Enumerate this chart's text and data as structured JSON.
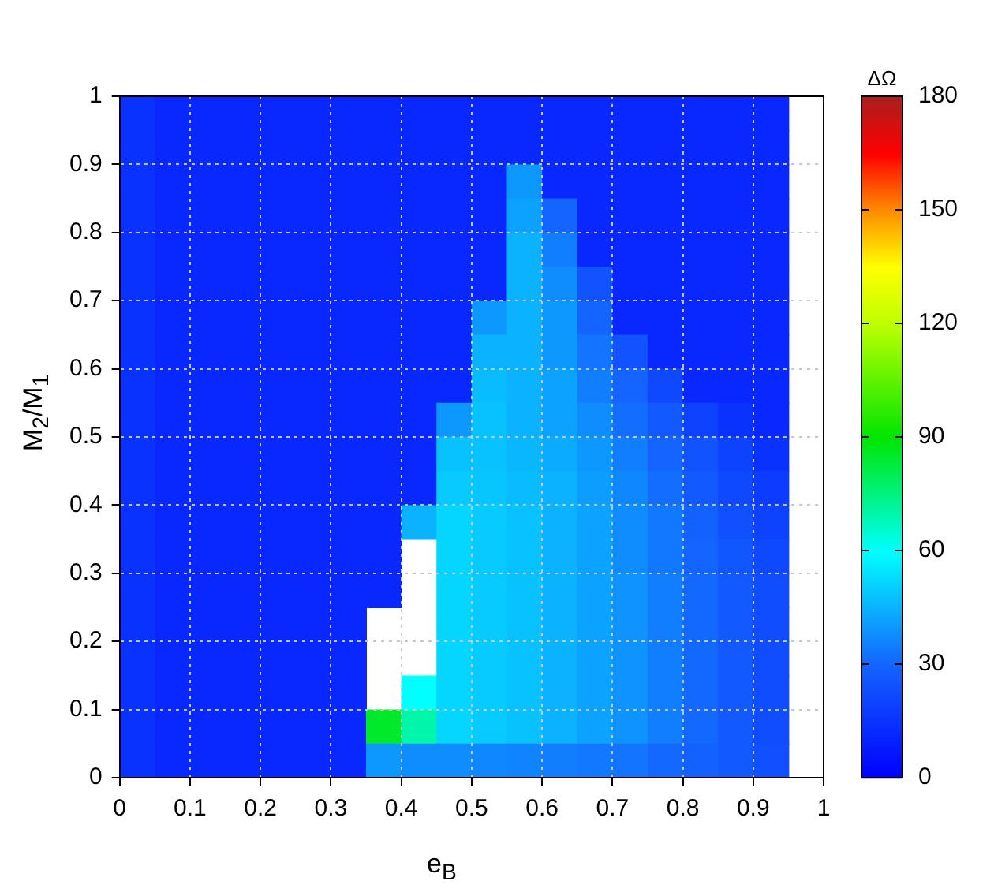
{
  "chart_data": {
    "type": "heatmap",
    "xlabel": "e$_{B}$",
    "ylabel": "M$_{2}$/M$_{1}$",
    "clabel": "ΔΩ",
    "cells": [
      [
        15,
        12,
        12,
        12,
        12,
        12,
        12,
        12,
        12,
        12,
        12,
        12,
        12,
        12,
        12,
        12,
        12,
        12,
        12,
        null
      ],
      [
        15,
        12,
        12,
        12,
        12,
        12,
        12,
        12,
        12,
        12,
        12,
        12,
        12,
        12,
        12,
        12,
        12,
        12,
        12,
        null
      ],
      [
        15,
        12,
        12,
        12,
        12,
        12,
        12,
        12,
        12,
        12,
        12,
        40,
        12,
        12,
        12,
        12,
        12,
        12,
        12,
        null
      ],
      [
        15,
        12,
        12,
        12,
        12,
        12,
        12,
        12,
        12,
        12,
        12,
        42,
        30,
        12,
        12,
        12,
        12,
        12,
        12,
        null
      ],
      [
        15,
        12,
        12,
        12,
        12,
        12,
        12,
        12,
        12,
        12,
        12,
        45,
        35,
        12,
        12,
        12,
        12,
        12,
        12,
        null
      ],
      [
        15,
        12,
        12,
        12,
        12,
        12,
        12,
        12,
        12,
        12,
        12,
        45,
        38,
        25,
        12,
        12,
        12,
        12,
        12,
        null
      ],
      [
        15,
        12,
        12,
        12,
        12,
        12,
        12,
        12,
        12,
        12,
        40,
        45,
        40,
        30,
        12,
        12,
        12,
        12,
        12,
        null
      ],
      [
        15,
        12,
        12,
        12,
        12,
        12,
        12,
        12,
        12,
        12,
        45,
        45,
        40,
        33,
        25,
        12,
        12,
        12,
        12,
        null
      ],
      [
        15,
        12,
        12,
        12,
        12,
        12,
        12,
        12,
        12,
        12,
        47,
        45,
        42,
        35,
        30,
        22,
        12,
        12,
        12,
        null
      ],
      [
        15,
        12,
        12,
        12,
        12,
        12,
        12,
        12,
        12,
        40,
        48,
        45,
        42,
        38,
        32,
        27,
        20,
        15,
        12,
        null
      ],
      [
        15,
        12,
        12,
        12,
        12,
        12,
        12,
        12,
        12,
        48,
        48,
        46,
        44,
        40,
        35,
        30,
        25,
        20,
        15,
        null
      ],
      [
        15,
        12,
        12,
        12,
        12,
        12,
        12,
        12,
        12,
        50,
        49,
        47,
        45,
        41,
        37,
        32,
        27,
        22,
        18,
        null
      ],
      [
        15,
        12,
        12,
        12,
        12,
        12,
        12,
        12,
        45,
        52,
        50,
        48,
        45,
        42,
        38,
        34,
        29,
        24,
        20,
        null
      ],
      [
        15,
        12,
        12,
        12,
        12,
        12,
        12,
        12,
        null,
        52,
        50,
        48,
        45,
        42,
        38,
        34,
        30,
        26,
        22,
        null
      ],
      [
        15,
        12,
        12,
        12,
        12,
        12,
        12,
        12,
        null,
        52,
        50,
        48,
        45,
        42,
        39,
        35,
        31,
        27,
        23,
        null
      ],
      [
        15,
        12,
        12,
        12,
        12,
        12,
        12,
        null,
        null,
        52,
        50,
        48,
        45,
        42,
        39,
        35,
        31,
        27,
        23,
        null
      ],
      [
        15,
        12,
        12,
        12,
        12,
        12,
        12,
        null,
        null,
        52,
        50,
        48,
        45,
        42,
        39,
        35,
        31,
        27,
        23,
        null
      ],
      [
        15,
        12,
        12,
        12,
        12,
        12,
        12,
        null,
        60,
        52,
        50,
        48,
        45,
        42,
        39,
        35,
        31,
        27,
        23,
        null
      ],
      [
        15,
        12,
        12,
        12,
        12,
        12,
        12,
        85,
        70,
        52,
        50,
        48,
        45,
        42,
        39,
        35,
        31,
        27,
        23,
        null
      ],
      [
        15,
        12,
        12,
        12,
        12,
        12,
        12,
        40,
        38,
        38,
        37,
        36,
        35,
        34,
        33,
        31,
        29,
        27,
        24,
        null
      ]
    ],
    "xlim": [
      0,
      1
    ],
    "xticks": [
      0,
      0.1,
      0.2,
      0.3,
      0.4,
      0.5,
      0.6,
      0.7,
      0.8,
      0.9,
      1
    ],
    "ylim": [
      0,
      1
    ],
    "yticks": [
      0,
      0.1,
      0.2,
      0.3,
      0.4,
      0.5,
      0.6,
      0.7,
      0.8,
      0.9,
      1
    ],
    "clim": [
      0,
      180
    ],
    "cticks": [
      0,
      30,
      60,
      90,
      120,
      150,
      180
    ],
    "grid": true
  }
}
